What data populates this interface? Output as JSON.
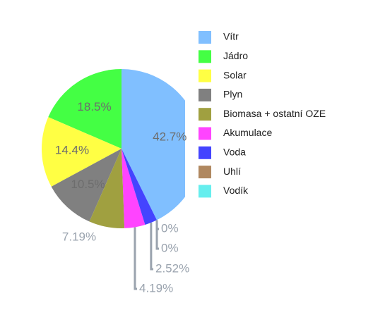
{
  "chart_data": {
    "type": "pie",
    "categories": [
      "Vítr",
      "Jádro",
      "Solar",
      "Plyn",
      "Biomasa + ostatní OZE",
      "Akumulace",
      "Voda",
      "Uhlí",
      "Vodík"
    ],
    "values": [
      42.7,
      18.5,
      14.4,
      10.5,
      7.19,
      4.19,
      2.52,
      0,
      0
    ],
    "value_labels": [
      "42.7%",
      "18.5%",
      "14.4%",
      "10.5%",
      "7.19%",
      "4.19%",
      "2.52%",
      "0%",
      "0%"
    ],
    "colors": [
      "#80bfff",
      "#44ff44",
      "#ffff44",
      "#808080",
      "#a0a040",
      "#ff44ff",
      "#4444ff",
      "#b08860",
      "#66eeee"
    ]
  }
}
